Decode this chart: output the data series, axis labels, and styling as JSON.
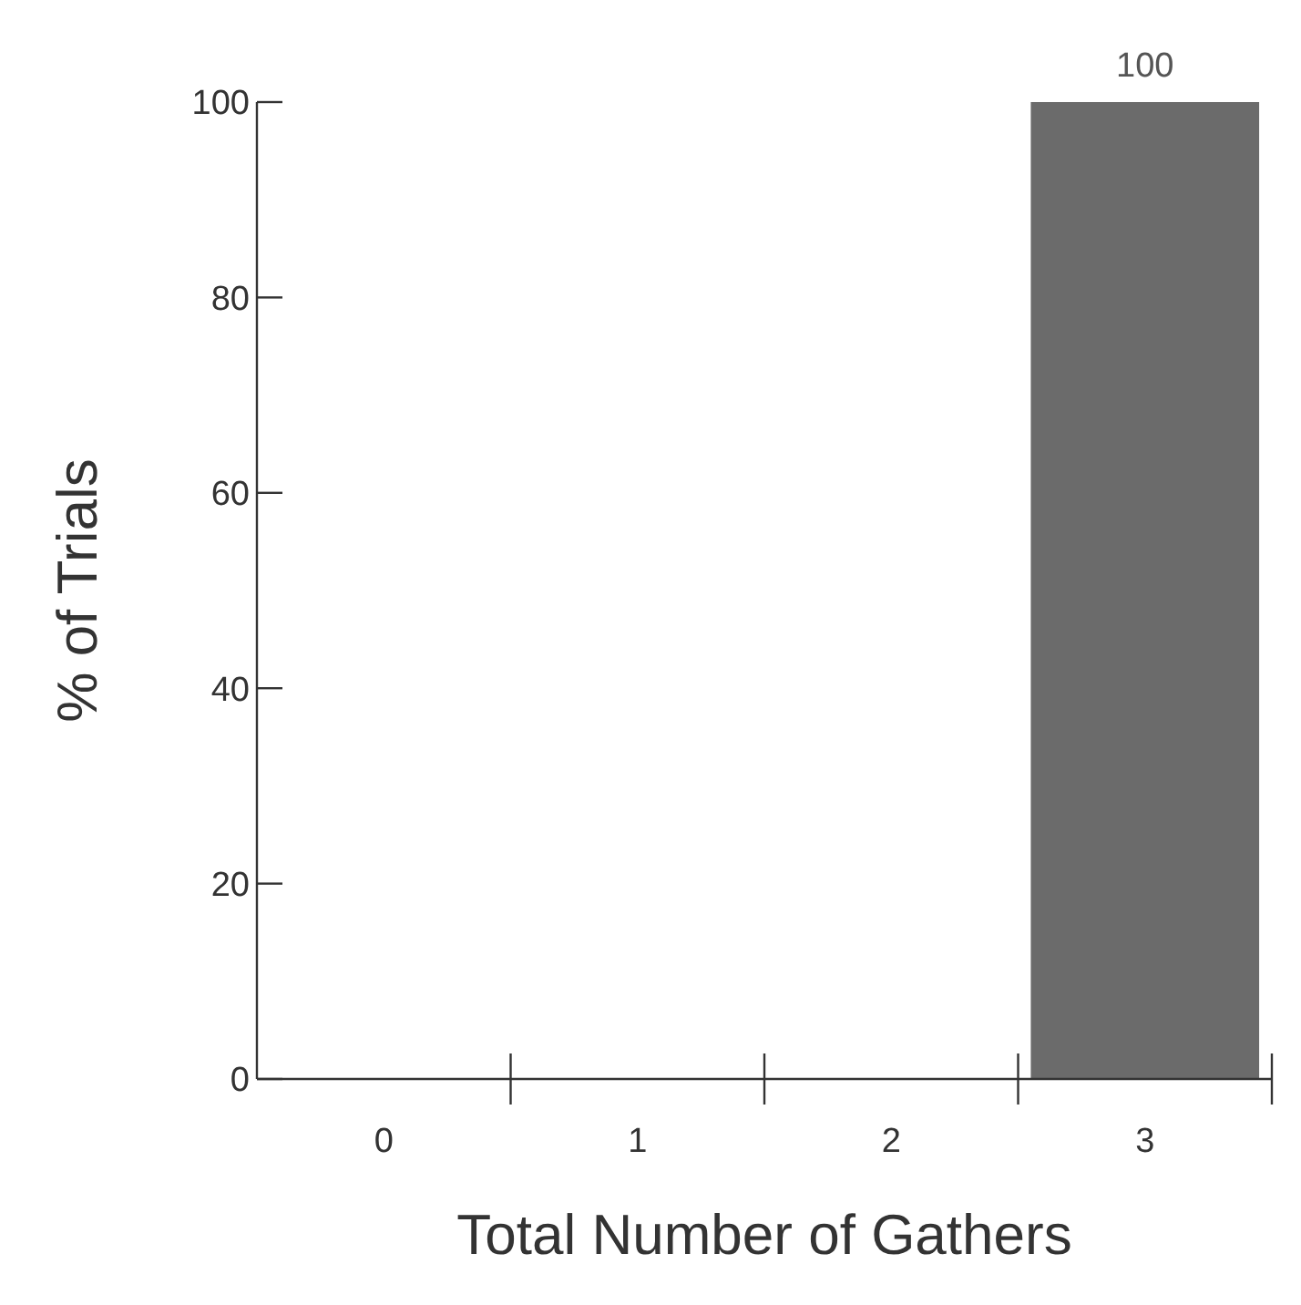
{
  "chart_data": {
    "type": "bar",
    "xlabel": "Total Number of Gathers",
    "ylabel": "% of Trials",
    "categories": [
      "0",
      "1",
      "2",
      "3"
    ],
    "values": [
      0,
      0,
      0,
      100
    ],
    "color": "#6b6b6b",
    "value_labels": [
      null,
      null,
      null,
      "100"
    ],
    "ylim": [
      0,
      100
    ],
    "yticks": [
      0,
      20,
      40,
      60,
      80,
      100
    ],
    "grid": false
  }
}
